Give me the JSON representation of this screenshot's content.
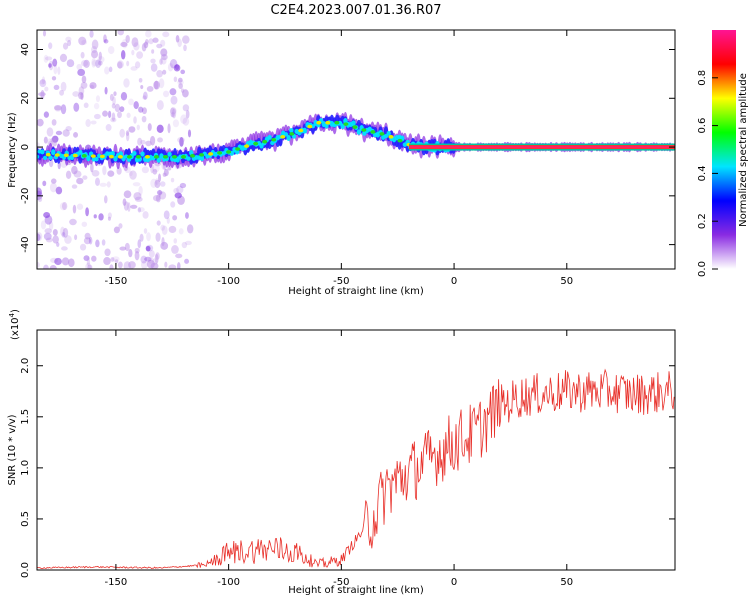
{
  "figure_title": "C2E4.2023.007.01.36.R07",
  "chart_data": [
    {
      "type": "heatmap",
      "title": "C2E4.2023.007.01.36.R07",
      "xlabel": "Height of straight line (km)",
      "ylabel": "Frequency (Hz)",
      "xlim": [
        -185,
        98
      ],
      "ylim": [
        -50,
        48
      ],
      "xticks": [
        -150,
        -100,
        -50,
        0,
        50
      ],
      "yticks": [
        -40,
        -20,
        0,
        20,
        40
      ],
      "xtick_labels": [
        "-150",
        "-100",
        "-50",
        "0",
        "50"
      ],
      "ytick_labels": [
        "-40",
        "-20",
        "0",
        "20",
        "40"
      ],
      "ridge": {
        "x": [
          -185,
          -150,
          -120,
          -100,
          -90,
          -80,
          -70,
          -60,
          -50,
          -40,
          -30,
          -25,
          -20,
          -10,
          0,
          10,
          50,
          98
        ],
        "y": [
          -3,
          -4,
          -4,
          -2,
          1,
          3,
          6,
          10,
          10,
          7,
          5,
          3,
          1,
          0,
          0,
          0,
          0,
          0
        ]
      },
      "colorbar": {
        "label": "Normalized spectral amplitude",
        "range": [
          0,
          1
        ],
        "ticks": [
          0.0,
          0.2,
          0.4,
          0.6,
          0.8
        ],
        "tick_labels": [
          "0.0",
          "0.2",
          "0.4",
          "0.6",
          "0.8"
        ],
        "colors": [
          "#ffffff",
          "#8a2be2",
          "#0000ff",
          "#00e5ff",
          "#00ff00",
          "#ffff00",
          "#ff0000",
          "#ff1493"
        ]
      }
    },
    {
      "type": "line",
      "xlabel": "Height of straight line (km)",
      "ylabel": "SNR (10 * v/v)",
      "y_multiplier": "(x10",
      "y_multiplier_exp": "4",
      "y_multiplier_close": ")",
      "xlim": [
        -185,
        98
      ],
      "ylim": [
        0,
        2.35
      ],
      "xticks": [
        -150,
        -100,
        -50,
        0,
        50
      ],
      "yticks": [
        0.0,
        0.5,
        1.0,
        1.5,
        2.0
      ],
      "xtick_labels": [
        "-150",
        "-100",
        "-50",
        "0",
        "50"
      ],
      "ytick_labels": [
        "0.0",
        "0.5",
        "1.0",
        "1.5",
        "2.0"
      ],
      "color": "#e8302a",
      "trend": {
        "x": [
          -185,
          -160,
          -130,
          -110,
          -100,
          -90,
          -80,
          -70,
          -60,
          -50,
          -40,
          -35,
          -30,
          -20,
          -10,
          0,
          10,
          20,
          30,
          50,
          70,
          80,
          98
        ],
        "y": [
          0.02,
          0.03,
          0.02,
          0.05,
          0.18,
          0.2,
          0.22,
          0.18,
          0.05,
          0.1,
          0.4,
          0.55,
          0.8,
          0.95,
          1.1,
          1.25,
          1.35,
          1.6,
          1.7,
          1.75,
          1.75,
          1.72,
          1.75
        ]
      }
    }
  ]
}
